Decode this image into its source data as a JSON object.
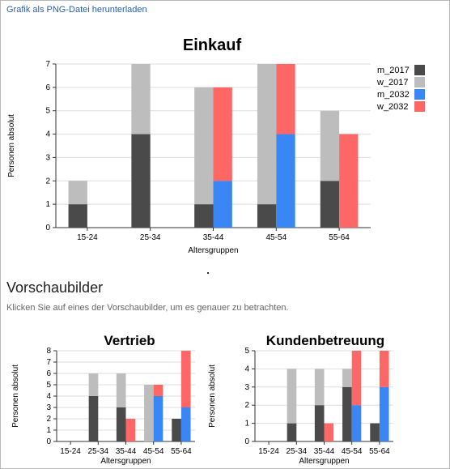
{
  "page": {
    "download_link": "Grafik als PNG-Datei herunterladen",
    "section_title": "Vorschaubilder",
    "section_hint": "Klicken Sie auf eines der Vorschaubilder, um es genauer zu betrachten."
  },
  "colors": {
    "m_2017": "#4a4a4a",
    "w_2017": "#bdbdbd",
    "m_2032": "#3a86f5",
    "w_2032": "#ff6666"
  },
  "chart_data": [
    {
      "type": "bar",
      "title": "Einkauf",
      "xlabel": "Altersgruppen",
      "ylabel": "Personen absolut",
      "categories": [
        "15-24",
        "25-34",
        "35-44",
        "45-54",
        "55-64"
      ],
      "ylim": [
        0,
        7
      ],
      "yticks": [
        0,
        1,
        2,
        3,
        4,
        5,
        6,
        7
      ],
      "grid": true,
      "legend": "right",
      "series": [
        {
          "name": "m_2017",
          "values": [
            1,
            4,
            1,
            1,
            2
          ]
        },
        {
          "name": "w_2017",
          "values": [
            1,
            3,
            5,
            6,
            3
          ]
        },
        {
          "name": "m_2032",
          "values": [
            0,
            0,
            2,
            4,
            0
          ]
        },
        {
          "name": "w_2032",
          "values": [
            0,
            0,
            4,
            3,
            4
          ]
        }
      ]
    },
    {
      "type": "bar",
      "title": "Vertrieb",
      "xlabel": "Altersgruppen",
      "ylabel": "Personen absolut",
      "categories": [
        "15-24",
        "25-34",
        "35-44",
        "45-54",
        "55-64"
      ],
      "ylim": [
        0,
        8
      ],
      "yticks": [
        0,
        1,
        2,
        3,
        4,
        5,
        6,
        7,
        8
      ],
      "grid": true,
      "series": [
        {
          "name": "m_2017",
          "values": [
            0,
            4,
            3,
            0,
            2
          ]
        },
        {
          "name": "w_2017",
          "values": [
            0,
            2,
            3,
            5,
            0
          ]
        },
        {
          "name": "m_2032",
          "values": [
            0,
            0,
            0,
            4,
            3
          ]
        },
        {
          "name": "w_2032",
          "values": [
            0,
            0,
            2,
            1,
            5
          ]
        }
      ]
    },
    {
      "type": "bar",
      "title": "Kundenbetreuung",
      "xlabel": "Altersgruppen",
      "ylabel": "Personen absolut",
      "categories": [
        "15-24",
        "25-34",
        "35-44",
        "45-54",
        "55-64"
      ],
      "ylim": [
        0,
        5
      ],
      "yticks": [
        0,
        1,
        2,
        3,
        4,
        5
      ],
      "grid": true,
      "series": [
        {
          "name": "m_2017",
          "values": [
            0,
            1,
            2,
            3,
            1
          ]
        },
        {
          "name": "w_2017",
          "values": [
            0,
            3,
            2,
            1,
            0
          ]
        },
        {
          "name": "m_2032",
          "values": [
            0,
            0,
            0,
            2,
            3
          ]
        },
        {
          "name": "w_2032",
          "values": [
            0,
            0,
            1,
            3,
            2
          ]
        }
      ]
    }
  ]
}
